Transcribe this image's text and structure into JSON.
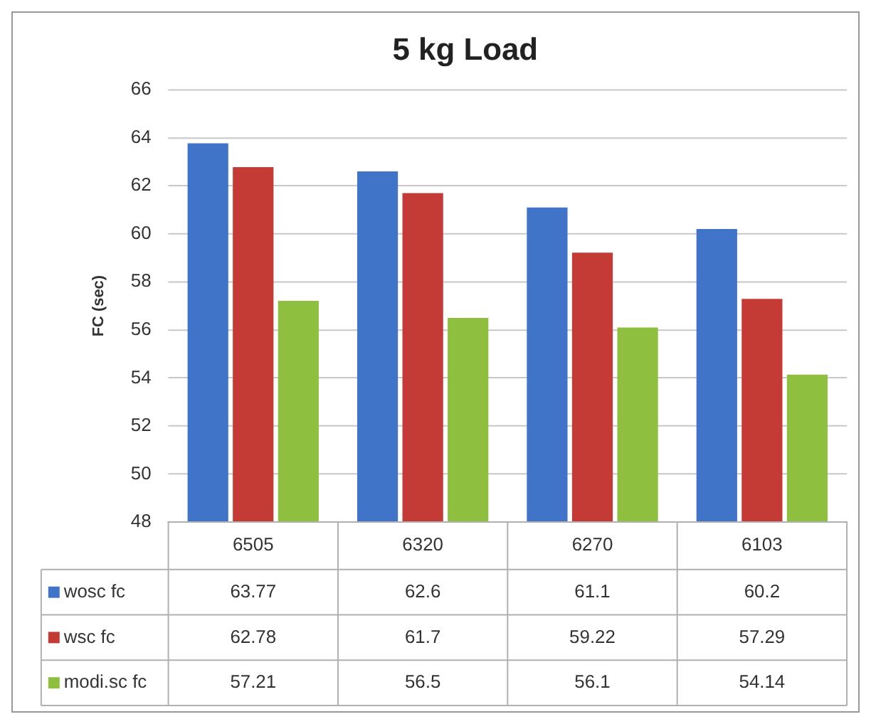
{
  "chart_data": {
    "type": "bar",
    "title": "5 kg Load",
    "ylabel": "FC (sec)",
    "categories": [
      "6505",
      "6320",
      "6270",
      "6103"
    ],
    "series": [
      {
        "name": "wosc fc",
        "color": "#3f74c9",
        "values": [
          63.77,
          62.6,
          61.1,
          60.2
        ]
      },
      {
        "name": "wsc fc",
        "color": "#c43a35",
        "values": [
          62.78,
          61.7,
          59.22,
          57.29
        ]
      },
      {
        "name": "modi.sc fc",
        "color": "#8fbf3f",
        "values": [
          57.21,
          56.5,
          56.1,
          54.14
        ]
      }
    ],
    "ylim": [
      48,
      66
    ],
    "yticks": [
      48,
      50,
      52,
      54,
      56,
      58,
      60,
      62,
      64,
      66
    ],
    "grid": "y",
    "legend": "bottom",
    "data_labels": true
  }
}
